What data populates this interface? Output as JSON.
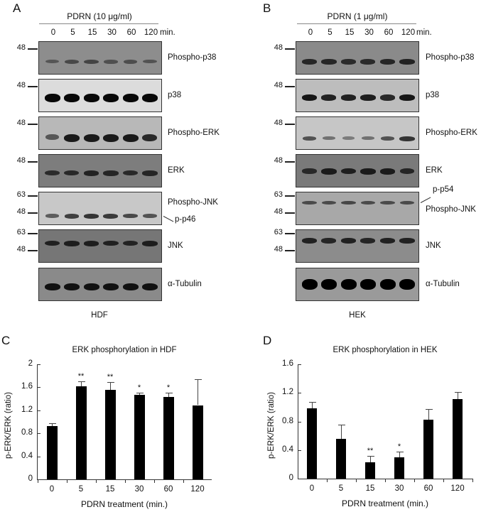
{
  "panels": {
    "A": {
      "letter": "A",
      "treatment": "PDRN (10 μg/ml)",
      "timepoints": [
        "0",
        "5",
        "15",
        "30",
        "60",
        "120"
      ],
      "time_unit": "min.",
      "cell_line": "HDF",
      "blots": [
        {
          "label": "Phospho-p38",
          "markers": [
            "48"
          ]
        },
        {
          "label": "p38",
          "markers": [
            "48"
          ]
        },
        {
          "label": "Phospho-ERK",
          "markers": [
            "48"
          ]
        },
        {
          "label": "ERK",
          "markers": [
            "48"
          ]
        },
        {
          "label": "Phospho-JNK",
          "markers": [
            "63",
            "48"
          ],
          "band_annotation": "p-p46"
        },
        {
          "label": "JNK",
          "markers": [
            "63",
            "48"
          ]
        },
        {
          "label": "α-Tubulin",
          "markers": []
        }
      ]
    },
    "B": {
      "letter": "B",
      "treatment": "PDRN (1 μg/ml)",
      "timepoints": [
        "0",
        "5",
        "15",
        "30",
        "60",
        "120"
      ],
      "time_unit": "min.",
      "cell_line": "HEK",
      "blots": [
        {
          "label": "Phospho-p38",
          "markers": [
            "48"
          ]
        },
        {
          "label": "p38",
          "markers": [
            "48"
          ]
        },
        {
          "label": "Phospho-ERK",
          "markers": [
            "48"
          ]
        },
        {
          "label": "ERK",
          "markers": [
            "48"
          ]
        },
        {
          "label": "Phospho-JNK",
          "markers": [
            "63",
            "48"
          ],
          "band_annotation": "p-p54"
        },
        {
          "label": "JNK",
          "markers": [
            "63",
            "48"
          ]
        },
        {
          "label": "α-Tubulin",
          "markers": []
        }
      ]
    },
    "C": {
      "letter": "C"
    },
    "D": {
      "letter": "D"
    }
  },
  "chart_data": [
    {
      "type": "bar",
      "panel": "C",
      "title": "ERK phosphorylation in HDF",
      "xlabel": "PDRN treatment (min.)",
      "ylabel": "p-ERK/ERK (ratio)",
      "categories": [
        "0",
        "5",
        "15",
        "30",
        "60",
        "120"
      ],
      "values": [
        0.93,
        1.62,
        1.55,
        1.47,
        1.43,
        1.29
      ],
      "errors": [
        0.04,
        0.08,
        0.14,
        0.04,
        0.08,
        0.45
      ],
      "significance": [
        "",
        "**",
        "**",
        "*",
        "*",
        ""
      ],
      "yticks": [
        "0",
        "0.4",
        "0.8",
        "1.2",
        "1.6",
        "2"
      ],
      "ylim": [
        0,
        2
      ],
      "grid": false
    },
    {
      "type": "bar",
      "panel": "D",
      "title": "ERK phosphorylation in HEK",
      "xlabel": "PDRN treatment (min.)",
      "ylabel": "p-ERK/ERK (ratio)",
      "categories": [
        "0",
        "5",
        "15",
        "30",
        "60",
        "120"
      ],
      "values": [
        0.98,
        0.56,
        0.23,
        0.3,
        0.82,
        1.11
      ],
      "errors": [
        0.09,
        0.2,
        0.09,
        0.08,
        0.15,
        0.1
      ],
      "significance": [
        "",
        "",
        "**",
        "*",
        "",
        ""
      ],
      "yticks": [
        "0",
        "0.4",
        "0.8",
        "1.2",
        "1.6"
      ],
      "ylim": [
        0,
        1.6
      ],
      "grid": false
    }
  ]
}
